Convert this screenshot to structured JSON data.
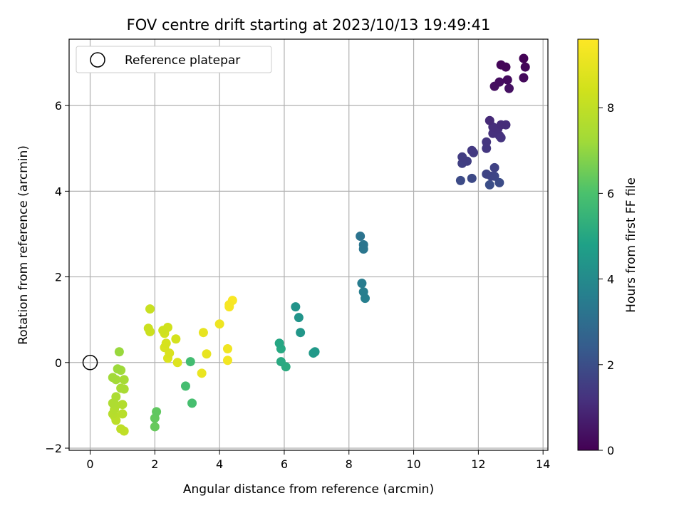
{
  "chart_data": {
    "type": "scatter",
    "title": "FOV centre drift starting at 2023/10/13 19:49:41",
    "xlabel": "Angular distance from reference (arcmin)",
    "ylabel": "Rotation from reference (arcmin)",
    "xlim": [
      -0.65,
      14.15
    ],
    "ylim": [
      -2.05,
      7.55
    ],
    "xticks": [
      0,
      2,
      4,
      6,
      8,
      10,
      12,
      14
    ],
    "yticks": [
      -2,
      0,
      2,
      4,
      6
    ],
    "grid": true,
    "legend": {
      "placement": "top-left",
      "entries": [
        "Reference platepar"
      ]
    },
    "reference_point": {
      "x": 0,
      "y": 0
    },
    "colorbar": {
      "label": "Hours from first FF file",
      "colormap": "viridis",
      "range": [
        0,
        9.6
      ],
      "ticks": [
        0,
        2,
        4,
        6,
        8
      ]
    },
    "points": [
      {
        "x": 13.4,
        "y": 7.1,
        "c": 0.05
      },
      {
        "x": 12.7,
        "y": 6.95,
        "c": 0.1
      },
      {
        "x": 12.85,
        "y": 6.9,
        "c": 0.12
      },
      {
        "x": 13.45,
        "y": 6.9,
        "c": 0.15
      },
      {
        "x": 13.4,
        "y": 6.65,
        "c": 0.2
      },
      {
        "x": 12.9,
        "y": 6.6,
        "c": 0.25
      },
      {
        "x": 12.65,
        "y": 6.55,
        "c": 0.3
      },
      {
        "x": 12.5,
        "y": 6.45,
        "c": 0.35
      },
      {
        "x": 12.95,
        "y": 6.4,
        "c": 0.4
      },
      {
        "x": 12.35,
        "y": 5.65,
        "c": 1.0
      },
      {
        "x": 12.7,
        "y": 5.55,
        "c": 1.05
      },
      {
        "x": 12.85,
        "y": 5.55,
        "c": 1.08
      },
      {
        "x": 12.45,
        "y": 5.5,
        "c": 1.1
      },
      {
        "x": 12.6,
        "y": 5.45,
        "c": 1.12
      },
      {
        "x": 12.45,
        "y": 5.35,
        "c": 1.15
      },
      {
        "x": 12.65,
        "y": 5.3,
        "c": 1.2
      },
      {
        "x": 12.7,
        "y": 5.25,
        "c": 1.25
      },
      {
        "x": 12.25,
        "y": 5.15,
        "c": 1.3
      },
      {
        "x": 12.25,
        "y": 5.0,
        "c": 1.35
      },
      {
        "x": 11.8,
        "y": 4.95,
        "c": 1.4
      },
      {
        "x": 11.85,
        "y": 4.9,
        "c": 1.45
      },
      {
        "x": 11.5,
        "y": 4.8,
        "c": 1.5
      },
      {
        "x": 11.65,
        "y": 4.7,
        "c": 1.55
      },
      {
        "x": 11.5,
        "y": 4.65,
        "c": 1.6
      },
      {
        "x": 12.5,
        "y": 4.55,
        "c": 1.65
      },
      {
        "x": 12.25,
        "y": 4.4,
        "c": 1.7
      },
      {
        "x": 12.4,
        "y": 4.35,
        "c": 1.75
      },
      {
        "x": 12.5,
        "y": 4.35,
        "c": 1.8
      },
      {
        "x": 11.8,
        "y": 4.3,
        "c": 1.85
      },
      {
        "x": 11.45,
        "y": 4.25,
        "c": 1.9
      },
      {
        "x": 12.65,
        "y": 4.2,
        "c": 1.95
      },
      {
        "x": 12.35,
        "y": 4.15,
        "c": 2.0
      },
      {
        "x": 8.35,
        "y": 2.95,
        "c": 3.2
      },
      {
        "x": 8.45,
        "y": 2.75,
        "c": 3.25
      },
      {
        "x": 8.45,
        "y": 2.65,
        "c": 3.3
      },
      {
        "x": 8.4,
        "y": 1.85,
        "c": 3.5
      },
      {
        "x": 8.45,
        "y": 1.65,
        "c": 3.55
      },
      {
        "x": 8.5,
        "y": 1.5,
        "c": 3.6
      },
      {
        "x": 6.35,
        "y": 1.3,
        "c": 4.3
      },
      {
        "x": 6.45,
        "y": 1.05,
        "c": 4.35
      },
      {
        "x": 6.5,
        "y": 0.7,
        "c": 4.4
      },
      {
        "x": 6.95,
        "y": 0.25,
        "c": 4.5
      },
      {
        "x": 6.9,
        "y": 0.22,
        "c": 4.55
      },
      {
        "x": 5.85,
        "y": 0.45,
        "c": 5.0
      },
      {
        "x": 5.9,
        "y": 0.32,
        "c": 5.05
      },
      {
        "x": 5.9,
        "y": 0.02,
        "c": 5.1
      },
      {
        "x": 6.05,
        "y": -0.1,
        "c": 5.15
      },
      {
        "x": 3.1,
        "y": 0.02,
        "c": 5.8
      },
      {
        "x": 2.95,
        "y": -0.55,
        "c": 5.85
      },
      {
        "x": 3.15,
        "y": -0.95,
        "c": 5.9
      },
      {
        "x": 2.05,
        "y": -1.15,
        "c": 6.3
      },
      {
        "x": 2.0,
        "y": -1.3,
        "c": 6.35
      },
      {
        "x": 2.0,
        "y": -1.5,
        "c": 6.4
      },
      {
        "x": 0.9,
        "y": 0.25,
        "c": 7.1
      },
      {
        "x": 0.85,
        "y": -0.15,
        "c": 7.15
      },
      {
        "x": 0.95,
        "y": -0.18,
        "c": 7.2
      },
      {
        "x": 0.7,
        "y": -0.35,
        "c": 7.25
      },
      {
        "x": 0.8,
        "y": -0.4,
        "c": 7.3
      },
      {
        "x": 1.05,
        "y": -0.4,
        "c": 7.35
      },
      {
        "x": 0.95,
        "y": -0.6,
        "c": 7.4
      },
      {
        "x": 1.05,
        "y": -0.62,
        "c": 7.45
      },
      {
        "x": 0.8,
        "y": -0.8,
        "c": 7.5
      },
      {
        "x": 0.7,
        "y": -0.95,
        "c": 7.55
      },
      {
        "x": 0.8,
        "y": -1.0,
        "c": 7.6
      },
      {
        "x": 1.0,
        "y": -0.98,
        "c": 7.65
      },
      {
        "x": 0.75,
        "y": -1.1,
        "c": 7.7
      },
      {
        "x": 0.7,
        "y": -1.2,
        "c": 7.75
      },
      {
        "x": 1.0,
        "y": -1.2,
        "c": 7.8
      },
      {
        "x": 0.75,
        "y": -1.25,
        "c": 7.85
      },
      {
        "x": 0.8,
        "y": -1.35,
        "c": 7.9
      },
      {
        "x": 0.95,
        "y": -1.55,
        "c": 7.95
      },
      {
        "x": 1.05,
        "y": -1.6,
        "c": 8.0
      },
      {
        "x": 1.85,
        "y": 1.25,
        "c": 8.2
      },
      {
        "x": 1.8,
        "y": 0.8,
        "c": 8.25
      },
      {
        "x": 1.85,
        "y": 0.72,
        "c": 8.3
      },
      {
        "x": 2.25,
        "y": 0.75,
        "c": 8.35
      },
      {
        "x": 2.4,
        "y": 0.82,
        "c": 8.4
      },
      {
        "x": 2.3,
        "y": 0.68,
        "c": 8.45
      },
      {
        "x": 2.65,
        "y": 0.55,
        "c": 8.5
      },
      {
        "x": 2.35,
        "y": 0.45,
        "c": 8.55
      },
      {
        "x": 2.3,
        "y": 0.35,
        "c": 8.6
      },
      {
        "x": 2.45,
        "y": 0.22,
        "c": 8.65
      },
      {
        "x": 2.4,
        "y": 0.1,
        "c": 8.7
      },
      {
        "x": 2.7,
        "y": 0.0,
        "c": 8.75
      },
      {
        "x": 3.5,
        "y": 0.7,
        "c": 9.0
      },
      {
        "x": 3.6,
        "y": 0.2,
        "c": 9.05
      },
      {
        "x": 3.45,
        "y": -0.25,
        "c": 9.1
      },
      {
        "x": 4.0,
        "y": 0.9,
        "c": 9.2
      },
      {
        "x": 4.25,
        "y": 0.32,
        "c": 9.25
      },
      {
        "x": 4.25,
        "y": 0.05,
        "c": 9.3
      },
      {
        "x": 4.3,
        "y": 1.35,
        "c": 9.4
      },
      {
        "x": 4.3,
        "y": 1.3,
        "c": 9.45
      },
      {
        "x": 4.4,
        "y": 1.45,
        "c": 9.5
      }
    ]
  }
}
